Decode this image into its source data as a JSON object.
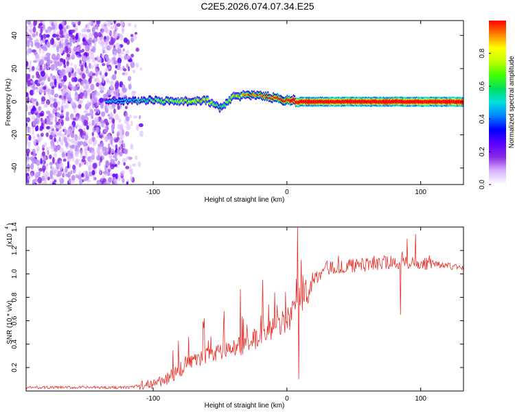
{
  "title": "C2E5.2026.074.07.34.E25",
  "chart_data": [
    {
      "type": "heatmap",
      "xlabel": "Height of straight line (km)",
      "ylabel": "Frequency (Hz)",
      "xlim": [
        -195,
        132
      ],
      "ylim": [
        -50,
        49
      ],
      "x_ticks": [
        -100,
        0,
        100
      ],
      "x_tick_labels": [
        "-100",
        "0",
        "100"
      ],
      "y_ticks": [
        -40,
        -20,
        0,
        20,
        40
      ],
      "y_tick_labels": [
        "-40",
        "-20",
        "0",
        "20",
        "40"
      ],
      "colorbar": {
        "label": "Normalized spectral amplitude",
        "range": [
          0,
          1
        ],
        "ticks": [
          0.0,
          0.2,
          0.4,
          0.6,
          0.8
        ],
        "tick_labels": [
          "0.0",
          "0.2",
          "0.4",
          "0.6",
          "0.8"
        ],
        "colors": [
          "#ffffff",
          "#d8b4ff",
          "#8a2be2",
          "#5a00ff",
          "#0000ff",
          "#0080ff",
          "#00e0e0",
          "#00e060",
          "#40ff00",
          "#c0ff00",
          "#ffff00",
          "#ff8000",
          "#ff0000"
        ]
      },
      "noise_region_x": [
        -195,
        -105
      ],
      "signal_ridge": [
        {
          "x": -135,
          "f": 0,
          "a": 0.3
        },
        {
          "x": -118,
          "f": 0.5,
          "a": 0.3
        },
        {
          "x": -100,
          "f": 1,
          "a": 0.4
        },
        {
          "x": -80,
          "f": 0,
          "a": 0.45
        },
        {
          "x": -60,
          "f": 1,
          "a": 0.5
        },
        {
          "x": -50,
          "f": -4,
          "a": 0.35
        },
        {
          "x": -40,
          "f": 3,
          "a": 0.5
        },
        {
          "x": -30,
          "f": 4,
          "a": 0.55
        },
        {
          "x": -15,
          "f": 3,
          "a": 0.6
        },
        {
          "x": 0,
          "f": 1,
          "a": 0.75
        },
        {
          "x": 10,
          "f": 0,
          "a": 0.9
        },
        {
          "x": 132,
          "f": 0,
          "a": 0.95
        }
      ]
    },
    {
      "type": "line",
      "xlabel": "Height of straight line (km)",
      "ylabel": "SNR (10 * v/v)",
      "y_multiplier": "(x10",
      "y_multiplier_exp": "4",
      "y_multiplier_close": ")",
      "xlim": [
        -195,
        132
      ],
      "ylim": [
        0,
        1.4
      ],
      "x_ticks": [
        -100,
        0,
        100
      ],
      "x_tick_labels": [
        "-100",
        "0",
        "100"
      ],
      "y_ticks": [
        0.2,
        0.4,
        0.6,
        0.8,
        1.0,
        1.2,
        1.4
      ],
      "y_tick_labels": [
        "0.2",
        "0.4",
        "0.6",
        "0.8",
        "1.0",
        "1.2",
        "1.4"
      ],
      "color": "#e8302a",
      "trend": [
        {
          "x": -195,
          "y": 0.03
        },
        {
          "x": -120,
          "y": 0.03
        },
        {
          "x": -105,
          "y": 0.05
        },
        {
          "x": -90,
          "y": 0.1
        },
        {
          "x": -75,
          "y": 0.22
        },
        {
          "x": -60,
          "y": 0.3
        },
        {
          "x": -45,
          "y": 0.33
        },
        {
          "x": -30,
          "y": 0.4
        },
        {
          "x": -15,
          "y": 0.5
        },
        {
          "x": 0,
          "y": 0.6
        },
        {
          "x": 10,
          "y": 0.78
        },
        {
          "x": 20,
          "y": 0.95
        },
        {
          "x": 30,
          "y": 1.05
        },
        {
          "x": 50,
          "y": 1.07
        },
        {
          "x": 80,
          "y": 1.1
        },
        {
          "x": 100,
          "y": 1.1
        },
        {
          "x": 132,
          "y": 1.05
        }
      ],
      "spikes": [
        {
          "x": -62,
          "y": 0.62
        },
        {
          "x": -47,
          "y": 0.68
        },
        {
          "x": -35,
          "y": 0.87
        },
        {
          "x": -18,
          "y": 0.95
        },
        {
          "x": 8,
          "y": 1.4
        },
        {
          "x": 9,
          "y": 0.1
        },
        {
          "x": 85,
          "y": 0.65
        },
        {
          "x": 90,
          "y": 1.3
        },
        {
          "x": 96,
          "y": 1.34
        }
      ]
    }
  ]
}
